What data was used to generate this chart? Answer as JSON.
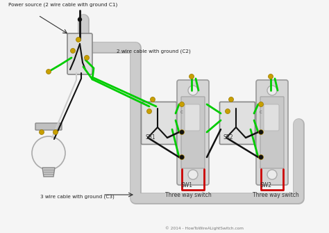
{
  "bg_color": "#f5f5f5",
  "label_top": "Power source (2 wire cable with ground C1)",
  "label_c2": "2 wire cable with ground (C2)",
  "label_c3": "3 wire cable with ground (C3)",
  "label_sw1": "Three way switch",
  "label_sw2": "Three way switch",
  "label_sb1": "SB1",
  "label_sb2": "SB2",
  "label_sw1_id": "SW1",
  "label_sw2_id": "SW2",
  "copyright": "© 2014 - HowToWireALightSwitch.com",
  "wire_black": "#111111",
  "wire_green": "#00cc00",
  "wire_red": "#cc0000",
  "wire_white": "#dddddd",
  "conduit_color": "#cccccc",
  "box_color": "#e8e8e8",
  "screw_color": "#c8a000",
  "junction_color": "#222222"
}
